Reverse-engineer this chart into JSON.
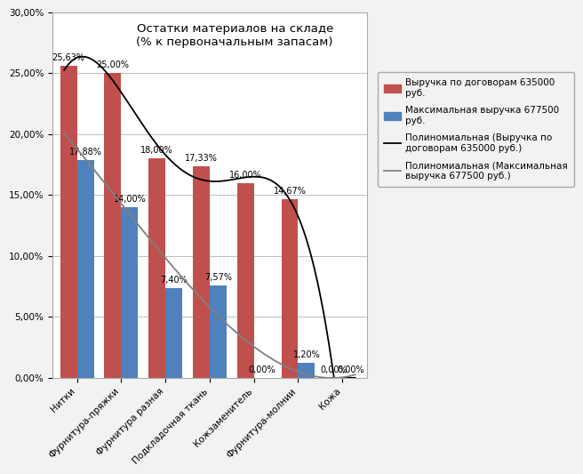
{
  "categories": [
    "Нитки",
    "Фурнитура-пряжки",
    "Фурнитура разная",
    "Подкладочная ткань",
    "Кожзаменитель",
    "Фурнитура-молнии",
    "Кожа"
  ],
  "values_red": [
    25.63,
    25.0,
    18.0,
    17.33,
    16.0,
    14.67,
    0.0
  ],
  "values_blue": [
    17.88,
    14.0,
    7.4,
    7.57,
    0.0,
    1.2,
    0.0
  ],
  "bar_color_red": "#c0504d",
  "bar_color_blue": "#4f81bd",
  "line_color_red": "#000000",
  "line_color_blue": "#808080",
  "title_line1": "Остатки материалов на складе",
  "title_line2": "(% к первоначальным запасам)",
  "ylim": [
    0.0,
    0.3
  ],
  "yticks": [
    0.0,
    0.05,
    0.1,
    0.15,
    0.2,
    0.25,
    0.3
  ],
  "ytick_labels": [
    "0,00%",
    "5,00%",
    "10,00%",
    "15,00%",
    "20,00%",
    "25,00%",
    "30,00%"
  ],
  "legend_red": "Выручка по договорам 635000\nруб.",
  "legend_blue": "Максимальная выручка 677500\nруб.",
  "legend_poly_red": "Полиномиальная (Выручка по\nдоговорам 635000 руб.)",
  "legend_poly_blue": "Полиномиальная (Максимальная\nвыручка 677500 руб.)",
  "background_color": "#f2f2f2",
  "plot_bg_color": "#ffffff",
  "grid_color": "#bfbfbf",
  "bar_width": 0.38,
  "label_fontsize": 7.0,
  "tick_fontsize": 7.5,
  "title_fontsize": 9.5,
  "legend_fontsize": 7.5
}
